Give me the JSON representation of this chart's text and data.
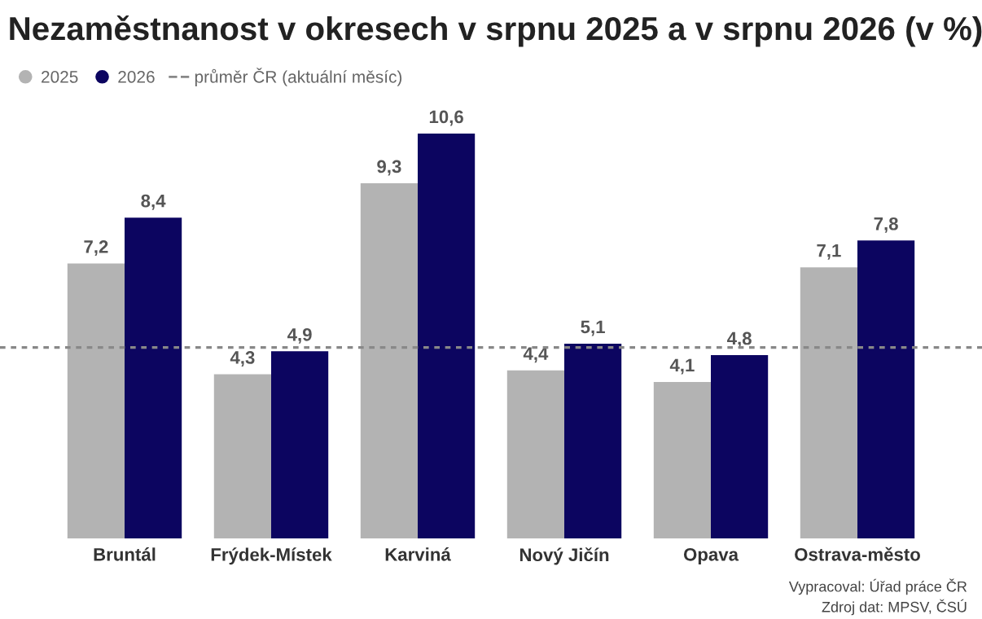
{
  "chart_data": {
    "type": "bar",
    "title": "Nezaměstnanost v okresech v srpnu 2025 a v srpnu 2026 (v %)",
    "categories": [
      "Bruntál",
      "Frýdek-Místek",
      "Karviná",
      "Nový Jičín",
      "Opava",
      "Ostrava-město"
    ],
    "series": [
      {
        "name": "2025",
        "color": "#b3b3b3",
        "values": [
          7.2,
          4.3,
          9.3,
          4.4,
          4.1,
          7.1
        ],
        "value_labels": [
          "7,2",
          "4,3",
          "9,3",
          "4,4",
          "4,1",
          "7,1"
        ]
      },
      {
        "name": "2026",
        "color": "#0c0560",
        "values": [
          8.4,
          4.9,
          10.6,
          5.1,
          4.8,
          7.8
        ],
        "value_labels": [
          "8,4",
          "4,9",
          "10,6",
          "5,1",
          "4,8",
          "7,8"
        ]
      }
    ],
    "ref_lines": [
      {
        "axis": "y",
        "value": 5.0,
        "label": "průměr ČR (aktuální měsíc)",
        "color": "#888888",
        "line_style": "dotted"
      }
    ],
    "legend": "top left",
    "grid": false,
    "annotations": [
      "Vypracoval: Úřad práce ČR",
      "Zdroj dat: MPSV, ČSÚ"
    ]
  }
}
